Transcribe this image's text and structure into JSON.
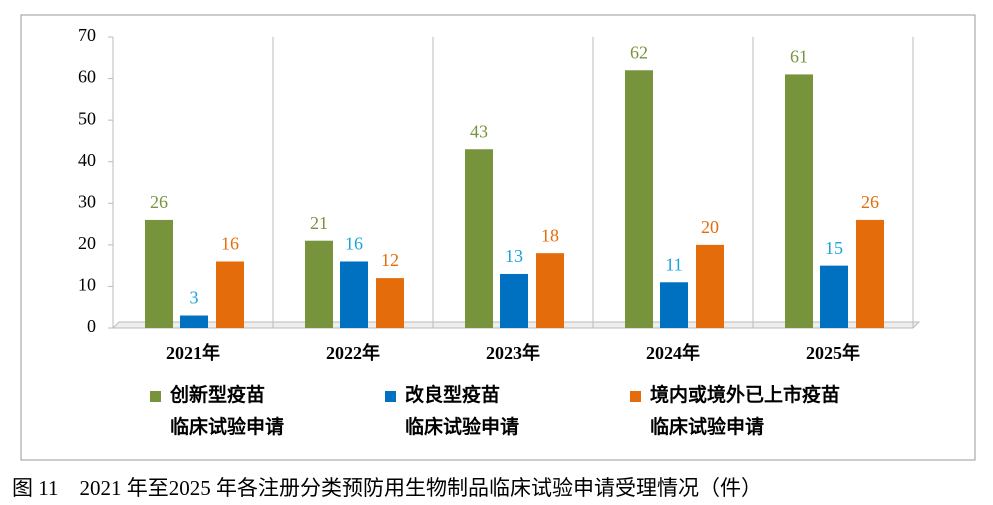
{
  "chart_data": {
    "type": "bar",
    "categories": [
      "2021年",
      "2022年",
      "2023年",
      "2024年",
      "2025年"
    ],
    "series": [
      {
        "name": "创新型疫苗\n临床试验申请",
        "color": "#77933c",
        "label_color": "#77933c",
        "values": [
          26,
          21,
          43,
          62,
          61
        ]
      },
      {
        "name": "改良型疫苗\n临床试验申请",
        "color": "#0070c0",
        "label_color": "#1aa3d9",
        "values": [
          3,
          16,
          13,
          11,
          15
        ]
      },
      {
        "name": "境内或境外已上市疫苗\n临床试验申请",
        "color": "#e46c0a",
        "label_color": "#e46c0a",
        "values": [
          16,
          12,
          18,
          20,
          26
        ]
      }
    ],
    "ylim": [
      0,
      70
    ],
    "yticks": [
      0,
      10,
      20,
      30,
      40,
      50,
      60,
      70
    ],
    "caption": "图 11　2021 年至2025 年各注册分类预防用生物制品临床试验申请受理情况（件）"
  }
}
